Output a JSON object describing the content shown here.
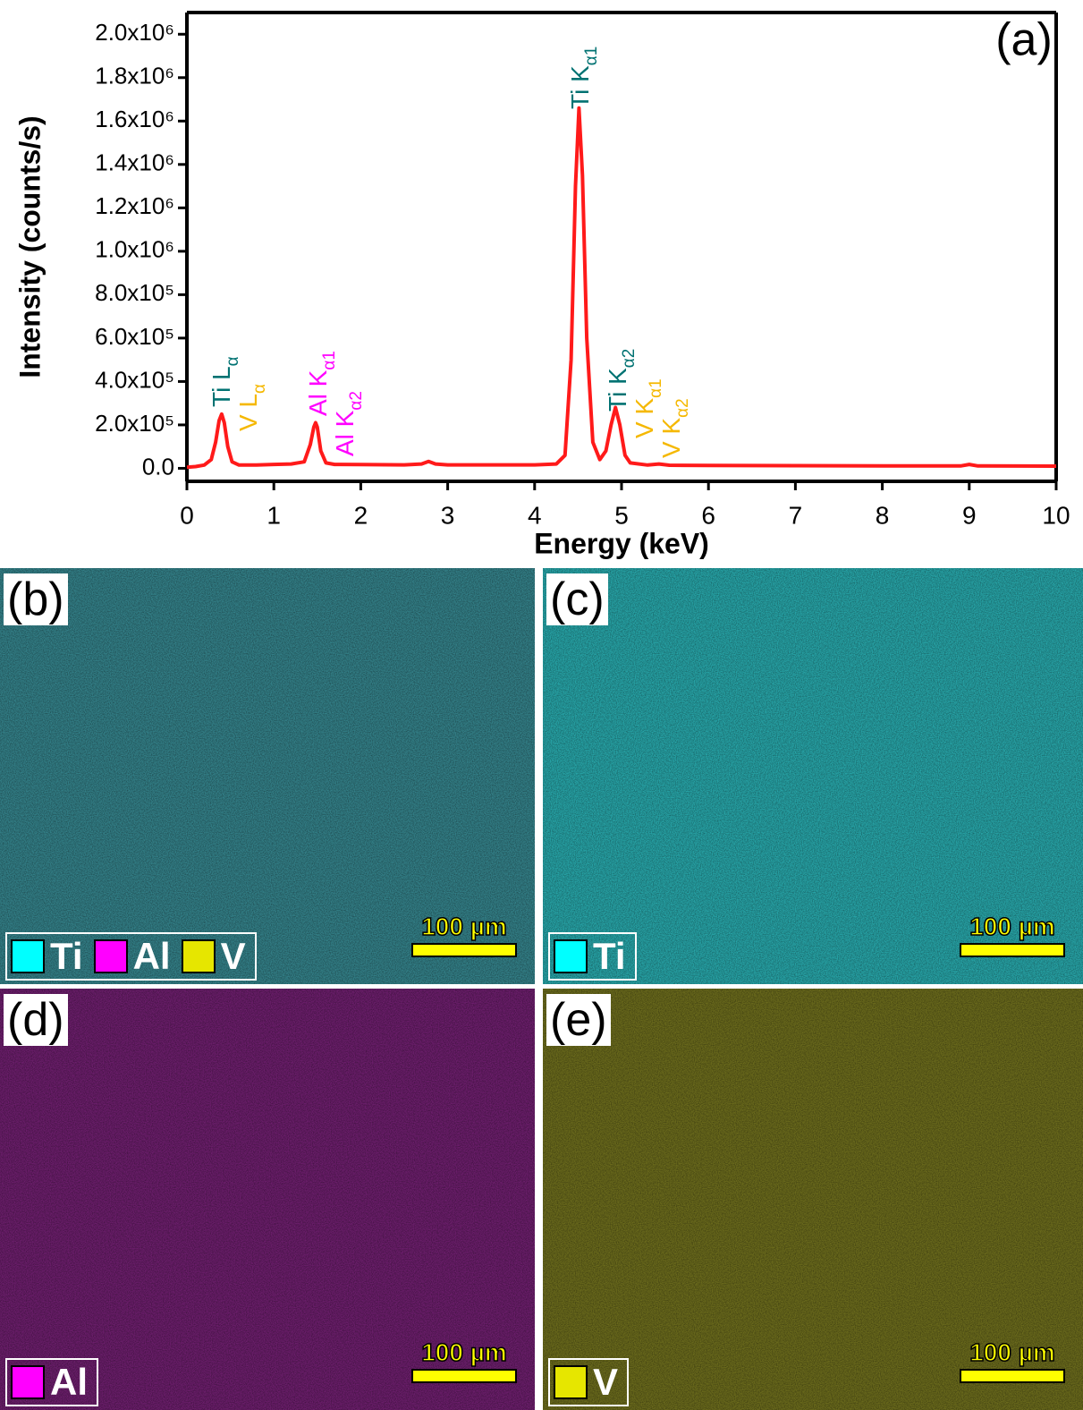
{
  "chart_data": {
    "type": "line",
    "panel_label": "(a)",
    "xlabel": "Energy (keV)",
    "ylabel": "Intensity (counts/s)",
    "color": "#ff1a1a",
    "xlim": [
      0,
      10
    ],
    "xticks": [
      0,
      1,
      2,
      3,
      4,
      5,
      6,
      7,
      8,
      9,
      10
    ],
    "ylim": [
      -60000,
      2100000
    ],
    "yticks": [
      {
        "value": 0,
        "label": "0.0"
      },
      {
        "value": 200000,
        "label": "2.0x10⁵"
      },
      {
        "value": 400000,
        "label": "4.0x10⁵"
      },
      {
        "value": 600000,
        "label": "6.0x10⁵"
      },
      {
        "value": 800000,
        "label": "8.0x10⁵"
      },
      {
        "value": 1000000,
        "label": "1.0x10⁶"
      },
      {
        "value": 1200000,
        "label": "1.2x10⁶"
      },
      {
        "value": 1400000,
        "label": "1.4x10⁶"
      },
      {
        "value": 1600000,
        "label": "1.6x10⁶"
      },
      {
        "value": 1800000,
        "label": "1.8x10⁶"
      },
      {
        "value": 2000000,
        "label": "2.0x10⁶"
      }
    ],
    "x": [
      0,
      0.1,
      0.2,
      0.28,
      0.33,
      0.37,
      0.4,
      0.43,
      0.47,
      0.52,
      0.6,
      0.8,
      1.0,
      1.2,
      1.35,
      1.42,
      1.46,
      1.48,
      1.5,
      1.54,
      1.6,
      1.7,
      2.0,
      2.5,
      2.7,
      2.78,
      2.86,
      3.0,
      3.5,
      4.0,
      4.25,
      4.35,
      4.42,
      4.47,
      4.51,
      4.55,
      4.6,
      4.67,
      4.75,
      4.82,
      4.88,
      4.93,
      4.98,
      5.04,
      5.1,
      5.3,
      5.43,
      5.55,
      6,
      7,
      8,
      8.9,
      9.0,
      9.1,
      10
    ],
    "values": [
      5000,
      8000,
      15000,
      40000,
      120000,
      220000,
      250000,
      210000,
      100000,
      30000,
      15000,
      15000,
      18000,
      20000,
      30000,
      110000,
      190000,
      210000,
      190000,
      80000,
      25000,
      18000,
      17000,
      16000,
      20000,
      32000,
      20000,
      16000,
      16000,
      16000,
      20000,
      60000,
      500000,
      1300000,
      1660000,
      1350000,
      600000,
      120000,
      40000,
      80000,
      200000,
      280000,
      200000,
      60000,
      25000,
      15000,
      20000,
      14000,
      13000,
      12000,
      11000,
      11000,
      18000,
      11000,
      10000
    ],
    "annotations": [
      {
        "text": "Ti L",
        "sub": "α",
        "color": "#007272"
      },
      {
        "text": "V L",
        "sub": "α",
        "color": "#f5b800"
      },
      {
        "text": "Al K",
        "sub": "α1",
        "color": "#ff00ff"
      },
      {
        "text": "Al K",
        "sub": "α2",
        "color": "#ff00ff"
      },
      {
        "text": "Ti K",
        "sub": "α1",
        "color": "#007272"
      },
      {
        "text": "Ti K",
        "sub": "α2",
        "color": "#007272"
      },
      {
        "text": "V K",
        "sub": "α1",
        "color": "#f5b800"
      },
      {
        "text": "V K",
        "sub": "α2",
        "color": "#f5b800"
      }
    ]
  },
  "panels": [
    {
      "label": "(b)",
      "color": "#337f87",
      "scale_bar": "100 µm",
      "legend": [
        {
          "name": "Ti",
          "color": "#00ffff"
        },
        {
          "name": "Al",
          "color": "#ff00ff"
        },
        {
          "name": "V",
          "color": "#e6e600"
        }
      ]
    },
    {
      "label": "(c)",
      "color": "#27a3a6",
      "scale_bar": "100 µm",
      "legend": [
        {
          "name": "Ti",
          "color": "#00ffff"
        }
      ]
    },
    {
      "label": "(d)",
      "color": "#6b1e6b",
      "scale_bar": "100 µm",
      "legend": [
        {
          "name": "Al",
          "color": "#ff00ff"
        }
      ]
    },
    {
      "label": "(e)",
      "color": "#6a6a1c",
      "scale_bar": "100 µm",
      "legend": [
        {
          "name": "V",
          "color": "#e6e600"
        }
      ]
    }
  ]
}
